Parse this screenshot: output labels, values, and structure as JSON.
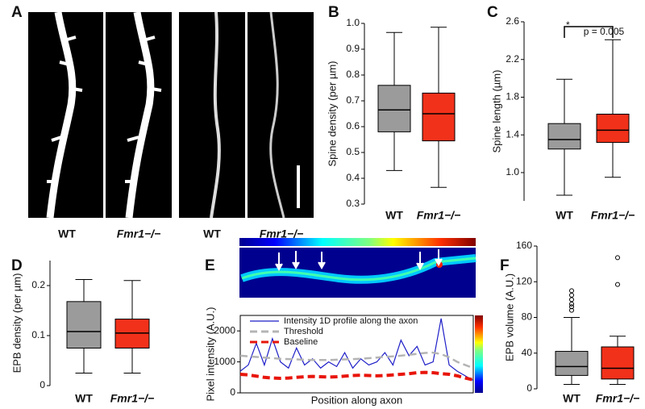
{
  "panel_letters": [
    "A",
    "B",
    "C",
    "D",
    "E",
    "F"
  ],
  "panel_a_labels": [
    "WT",
    "Fmr1−/−",
    "WT",
    "Fmr1−/−"
  ],
  "chart_data": [
    {
      "type": "box",
      "y_label": "Spine density (per µm)",
      "ylim": [
        0.3,
        1.0
      ],
      "yticks": [
        0.3,
        0.4,
        0.5,
        0.6,
        0.7,
        0.8,
        0.9,
        {
          "value": 1,
          "label": "1.0"
        }
      ],
      "categories": [
        "WT",
        "Fmr1−/−"
      ],
      "category_colors": [
        "#000000",
        "#e8150b"
      ],
      "boxes": [
        {
          "color": "#9b9b9b",
          "min": 0.43,
          "q1": 0.58,
          "median": 0.665,
          "q3": 0.76,
          "max": 0.965,
          "outliers": []
        },
        {
          "color": "#f2311a",
          "min": 0.365,
          "q1": 0.545,
          "median": 0.65,
          "q3": 0.73,
          "max": 0.985,
          "outliers": []
        }
      ]
    },
    {
      "type": "box",
      "y_label": "Spine length (µm)",
      "ylim": [
        0.7,
        2.6
      ],
      "yticks": [
        {
          "value": 1,
          "label": "1.0"
        },
        1.4,
        1.8,
        2.2,
        2.6
      ],
      "categories": [
        "WT",
        "Fmr1−/−"
      ],
      "category_colors": [
        "#000000",
        "#e8150b"
      ],
      "annotations": [
        "*",
        "p = 0.005"
      ],
      "boxes": [
        {
          "color": "#9b9b9b",
          "min": 0.76,
          "q1": 1.25,
          "median": 1.35,
          "q3": 1.52,
          "max": 1.99,
          "outliers": []
        },
        {
          "color": "#f2311a",
          "min": 0.95,
          "q1": 1.32,
          "median": 1.45,
          "q3": 1.62,
          "max": 2.41,
          "outliers": []
        }
      ]
    },
    {
      "type": "box",
      "y_label": "EPB density (per µm)",
      "ylim": [
        0,
        0.25
      ],
      "yticks": [
        0,
        0.1,
        0.2
      ],
      "categories": [
        "WT",
        "Fmr1−/−"
      ],
      "category_colors": [
        "#000000",
        "#e8150b"
      ],
      "boxes": [
        {
          "color": "#9b9b9b",
          "min": 0.025,
          "q1": 0.075,
          "median": 0.108,
          "q3": 0.168,
          "max": 0.212,
          "outliers": []
        },
        {
          "color": "#f2311a",
          "min": 0.025,
          "q1": 0.075,
          "median": 0.105,
          "q3": 0.133,
          "max": 0.21,
          "outliers": []
        }
      ]
    },
    {
      "type": "line",
      "y_label": "Pixel intensity (A.U.)",
      "x_label": "Position along axon",
      "ylim": [
        0,
        2500
      ],
      "yticks": [
        0,
        1000,
        2000
      ],
      "series": [
        {
          "name": "Intensity 1D profile along the axon",
          "color": "#1f1fc8",
          "dash": false,
          "values": [
            700,
            900,
            1600,
            900,
            1750,
            1000,
            800,
            1450,
            900,
            1100,
            800,
            1000,
            850,
            1300,
            800,
            1100,
            900,
            1000,
            1300,
            900,
            1700,
            1200,
            1500,
            900,
            1000,
            2400,
            900,
            700,
            550,
            400
          ]
        },
        {
          "name": "Threshold",
          "color": "#b4b4b4",
          "dash": true,
          "values": [
            1200,
            1180,
            1160,
            1140,
            1120,
            1100,
            1090,
            1080,
            1070,
            1060,
            1060,
            1060,
            1070,
            1080,
            1090,
            1100,
            1120,
            1140,
            1160,
            1180,
            1200,
            1230,
            1260,
            1290,
            1300,
            1250,
            1150,
            1000,
            900,
            800
          ]
        },
        {
          "name": "Baseline",
          "color": "#e8150b",
          "dash": true,
          "values": [
            600,
            580,
            540,
            500,
            480,
            470,
            480,
            500,
            520,
            530,
            520,
            510,
            520,
            540,
            560,
            570,
            560,
            550,
            560,
            580,
            600,
            620,
            650,
            660,
            650,
            620,
            600,
            550,
            480,
            420
          ]
        }
      ]
    },
    {
      "type": "box",
      "y_label": "EPB volume (A.U.)",
      "ylim": [
        0,
        160
      ],
      "yticks": [
        0,
        40,
        80,
        120,
        160
      ],
      "categories": [
        "WT",
        "Fmr1−/−"
      ],
      "category_colors": [
        "#000000",
        "#e8150b"
      ],
      "boxes": [
        {
          "color": "#9b9b9b",
          "min": 5,
          "q1": 15,
          "median": 25,
          "q3": 42,
          "max": 80,
          "outliers": [
            88,
            92,
            95,
            100,
            105,
            110
          ]
        },
        {
          "color": "#f2311a",
          "min": 5,
          "q1": 11,
          "median": 23,
          "q3": 47,
          "max": 59,
          "outliers": [
            117,
            147
          ]
        }
      ]
    }
  ]
}
